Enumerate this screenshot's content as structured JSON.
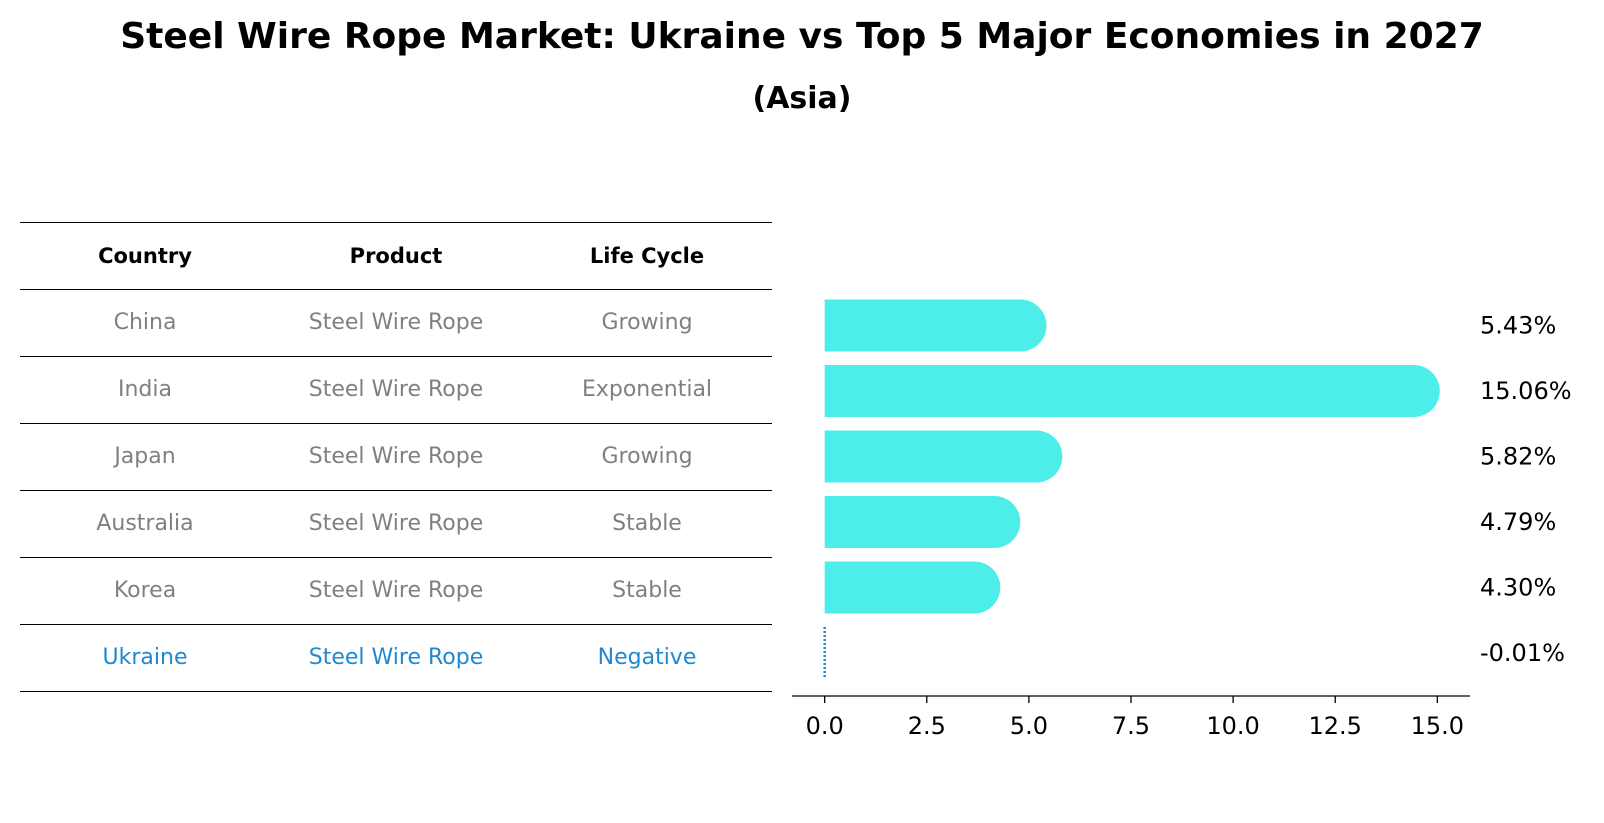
{
  "title": "Steel Wire Rope Market: Ukraine vs Top 5 Major Economies in 2027",
  "subtitle": "(Asia)",
  "table": {
    "headers": [
      "Country",
      "Product",
      "Life Cycle"
    ],
    "rows": [
      {
        "country": "China",
        "product": "Steel Wire Rope",
        "life_cycle": "Growing"
      },
      {
        "country": "India",
        "product": "Steel Wire Rope",
        "life_cycle": "Exponential"
      },
      {
        "country": "Japan",
        "product": "Steel Wire Rope",
        "life_cycle": "Growing"
      },
      {
        "country": "Australia",
        "product": "Steel Wire Rope",
        "life_cycle": "Stable"
      },
      {
        "country": "Korea",
        "product": "Steel Wire Rope",
        "life_cycle": "Stable"
      },
      {
        "country": "Ukraine",
        "product": "Steel Wire Rope",
        "life_cycle": "Negative"
      }
    ]
  },
  "colors": {
    "bar": "#4deeea",
    "highlight": "#1f88d0",
    "muted": "#808080"
  },
  "chart_data": {
    "type": "bar",
    "orientation": "horizontal",
    "categories": [
      "China",
      "India",
      "Japan",
      "Australia",
      "Korea",
      "Ukraine"
    ],
    "values": [
      5.43,
      15.06,
      5.82,
      4.79,
      4.3,
      -0.01
    ],
    "labels": [
      "5.43%",
      "15.06%",
      "5.82%",
      "4.79%",
      "4.30%",
      "-0.01%"
    ],
    "xticks": [
      0.0,
      2.5,
      5.0,
      7.5,
      10.0,
      12.5,
      15.0
    ],
    "xtick_labels": [
      "0.0",
      "2.5",
      "5.0",
      "7.5",
      "10.0",
      "12.5",
      "15.0"
    ],
    "xlim": [
      -0.8,
      15.8
    ],
    "xlabel": "",
    "ylabel": ""
  }
}
